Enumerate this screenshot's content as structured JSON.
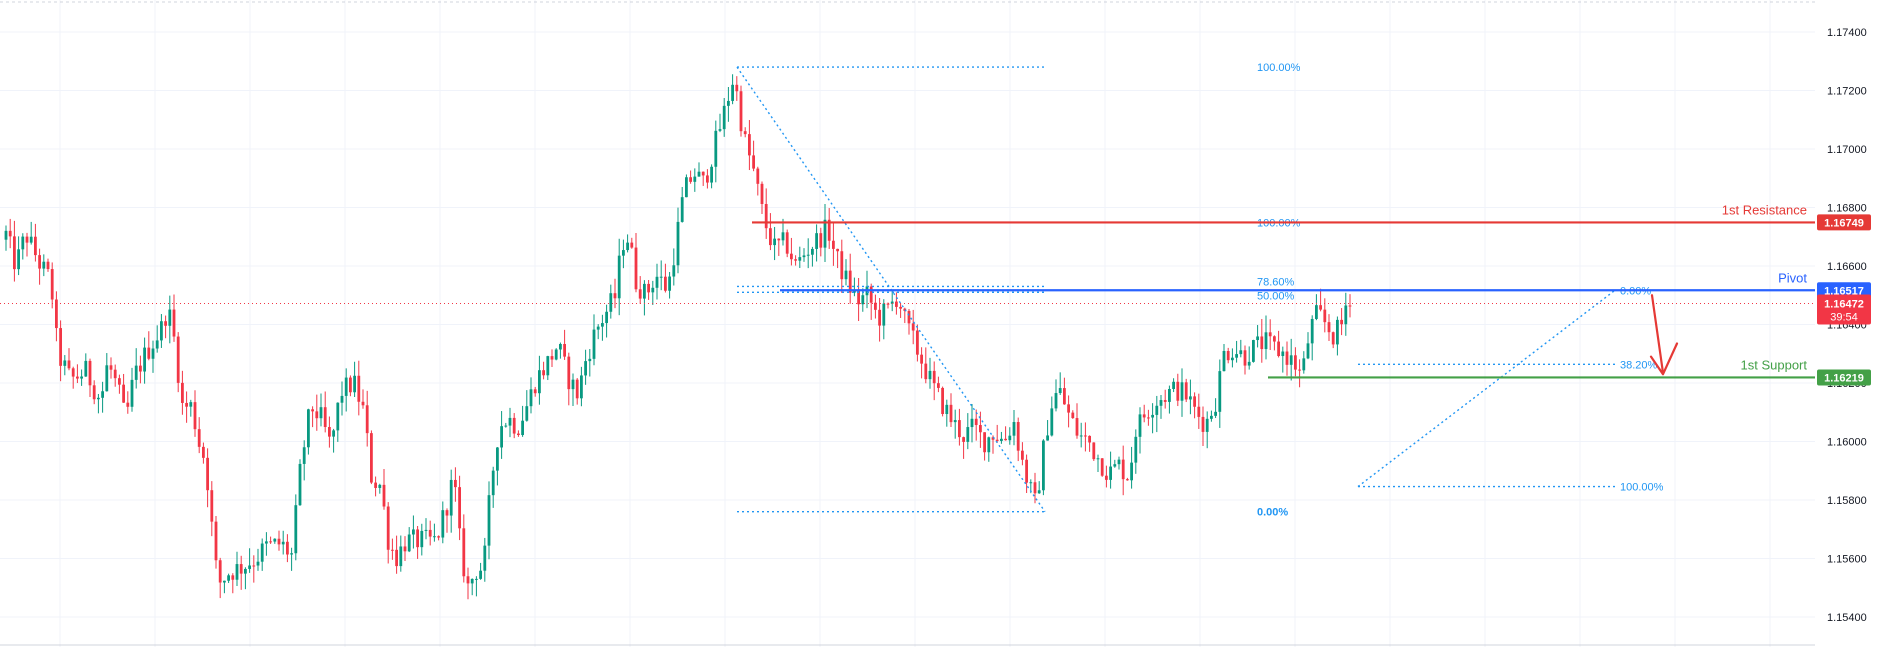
{
  "chart_data": {
    "type": "candlestick",
    "title": "",
    "xlabel": "",
    "ylabel": "",
    "ylim": [
      1.1536,
      1.1757
    ],
    "grid": true,
    "y_ticks": [
      {
        "value": 1.174,
        "label": "1.17400"
      },
      {
        "value": 1.172,
        "label": "1.17200"
      },
      {
        "value": 1.17,
        "label": "1.17000"
      },
      {
        "value": 1.168,
        "label": "1.16800"
      },
      {
        "value": 1.166,
        "label": "1.16600"
      },
      {
        "value": 1.164,
        "label": "1.16400"
      },
      {
        "value": 1.162,
        "label": "1.16200"
      },
      {
        "value": 1.16,
        "label": "1.16000"
      },
      {
        "value": 1.158,
        "label": "1.15800"
      },
      {
        "value": 1.156,
        "label": "1.15600"
      },
      {
        "value": 1.154,
        "label": "1.15400"
      }
    ],
    "price_path": [
      [
        0,
        1.1666
      ],
      [
        10,
        1.1671
      ],
      [
        20,
        1.166
      ],
      [
        30,
        1.1671
      ],
      [
        45,
        1.166
      ],
      [
        55,
        1.1655
      ],
      [
        62,
        1.163
      ],
      [
        75,
        1.1621
      ],
      [
        90,
        1.1624
      ],
      [
        105,
        1.1614
      ],
      [
        112,
        1.1627
      ],
      [
        122,
        1.1618
      ],
      [
        130,
        1.1607
      ],
      [
        138,
        1.1622
      ],
      [
        150,
        1.163
      ],
      [
        165,
        1.1638
      ],
      [
        172,
        1.1646
      ],
      [
        180,
        1.1632
      ],
      [
        186,
        1.1612
      ],
      [
        196,
        1.1612
      ],
      [
        203,
        1.16
      ],
      [
        210,
        1.1593
      ],
      [
        216,
        1.1571
      ],
      [
        222,
        1.1551
      ],
      [
        232,
        1.1555
      ],
      [
        245,
        1.1557
      ],
      [
        260,
        1.156
      ],
      [
        270,
        1.1564
      ],
      [
        285,
        1.1565
      ],
      [
        296,
        1.1561
      ],
      [
        305,
        1.1592
      ],
      [
        315,
        1.1612
      ],
      [
        325,
        1.1608
      ],
      [
        335,
        1.1598
      ],
      [
        345,
        1.1617
      ],
      [
        358,
        1.162
      ],
      [
        368,
        1.161
      ],
      [
        376,
        1.1587
      ],
      [
        385,
        1.1585
      ],
      [
        392,
        1.1567
      ],
      [
        400,
        1.156
      ],
      [
        410,
        1.1566
      ],
      [
        425,
        1.1566
      ],
      [
        440,
        1.1566
      ],
      [
        450,
        1.1577
      ],
      [
        458,
        1.1588
      ],
      [
        465,
        1.1562
      ],
      [
        472,
        1.155
      ],
      [
        480,
        1.1556
      ],
      [
        488,
        1.1557
      ],
      [
        495,
        1.1585
      ],
      [
        503,
        1.1605
      ],
      [
        512,
        1.1608
      ],
      [
        522,
        1.1605
      ],
      [
        532,
        1.1613
      ],
      [
        540,
        1.1621
      ],
      [
        552,
        1.1627
      ],
      [
        562,
        1.1633
      ],
      [
        572,
        1.1622
      ],
      [
        582,
        1.1616
      ],
      [
        590,
        1.1628
      ],
      [
        600,
        1.1638
      ],
      [
        610,
        1.1644
      ],
      [
        620,
        1.165
      ],
      [
        626,
        1.1668
      ],
      [
        633,
        1.167
      ],
      [
        640,
        1.1655
      ],
      [
        650,
        1.165
      ],
      [
        660,
        1.1657
      ],
      [
        672,
        1.1652
      ],
      [
        680,
        1.1668
      ],
      [
        688,
        1.1685
      ],
      [
        698,
        1.1692
      ],
      [
        708,
        1.1688
      ],
      [
        718,
        1.17
      ],
      [
        728,
        1.1712
      ],
      [
        738,
        1.1725
      ],
      [
        748,
        1.1704
      ],
      [
        758,
        1.1692
      ],
      [
        768,
        1.1676
      ],
      [
        778,
        1.1666
      ],
      [
        790,
        1.1668
      ],
      [
        800,
        1.166
      ],
      [
        810,
        1.1665
      ],
      [
        822,
        1.1669
      ],
      [
        832,
        1.1673
      ],
      [
        840,
        1.1663
      ],
      [
        852,
        1.1654
      ],
      [
        862,
        1.1648
      ],
      [
        872,
        1.165
      ],
      [
        882,
        1.1642
      ],
      [
        892,
        1.1645
      ],
      [
        902,
        1.165
      ],
      [
        910,
        1.164
      ],
      [
        918,
        1.1634
      ],
      [
        928,
        1.1626
      ],
      [
        938,
        1.1618
      ],
      [
        948,
        1.1612
      ],
      [
        958,
        1.1606
      ],
      [
        968,
        1.1602
      ],
      [
        978,
        1.1605
      ],
      [
        988,
        1.16
      ],
      [
        998,
        1.1603
      ],
      [
        1008,
        1.16
      ],
      [
        1018,
        1.1607
      ],
      [
        1025,
        1.1595
      ],
      [
        1033,
        1.1585
      ],
      [
        1040,
        1.1578
      ],
      [
        1048,
        1.1598
      ],
      [
        1055,
        1.1612
      ],
      [
        1063,
        1.1618
      ],
      [
        1073,
        1.1609
      ],
      [
        1083,
        1.1602
      ],
      [
        1093,
        1.16
      ],
      [
        1103,
        1.1594
      ],
      [
        1113,
        1.1589
      ],
      [
        1123,
        1.1592
      ],
      [
        1133,
        1.1588
      ],
      [
        1140,
        1.1604
      ],
      [
        1150,
        1.161
      ],
      [
        1160,
        1.1614
      ],
      [
        1170,
        1.1616
      ],
      [
        1180,
        1.1618
      ],
      [
        1190,
        1.1616
      ],
      [
        1200,
        1.161
      ],
      [
        1210,
        1.1606
      ],
      [
        1220,
        1.1614
      ],
      [
        1228,
        1.163
      ],
      [
        1238,
        1.1632
      ],
      [
        1248,
        1.1629
      ],
      [
        1258,
        1.1632
      ],
      [
        1268,
        1.1634
      ],
      [
        1278,
        1.1632
      ],
      [
        1288,
        1.163
      ],
      [
        1298,
        1.1627
      ],
      [
        1306,
        1.1622
      ],
      [
        1314,
        1.1638
      ],
      [
        1322,
        1.1644
      ],
      [
        1330,
        1.164
      ],
      [
        1338,
        1.1636
      ],
      [
        1346,
        1.164
      ],
      [
        1352,
        1.165
      ]
    ],
    "levels": [
      {
        "name": "1st Resistance",
        "value": 1.16749,
        "label": "1.16749",
        "color": "#e53935"
      },
      {
        "name": "Pivot",
        "value": 1.16517,
        "label": "1.16517",
        "color": "#2962ff"
      },
      {
        "name": "1st Support",
        "value": 1.16219,
        "label": "1.16219",
        "color": "#43a047"
      }
    ],
    "last_price": {
      "value": 1.16472,
      "label": "1.16472",
      "countdown": "39:54",
      "color": "#f23645"
    },
    "fib_labels": {
      "f1_top": "100.00%",
      "f1_mid_a": "100.00%",
      "f1_mid_b": "78.60%",
      "f1_mid_c": "50.00%",
      "f1_bottom": "0.00%",
      "f2_top": "0.00%",
      "f2_mid": "38.20%",
      "f2_bottom": "100.00%"
    },
    "colors": {
      "up": "#089981",
      "down": "#f23645",
      "fib": "#2196f3",
      "grid": "#f0f3fa",
      "axis_text": "#131722"
    }
  }
}
